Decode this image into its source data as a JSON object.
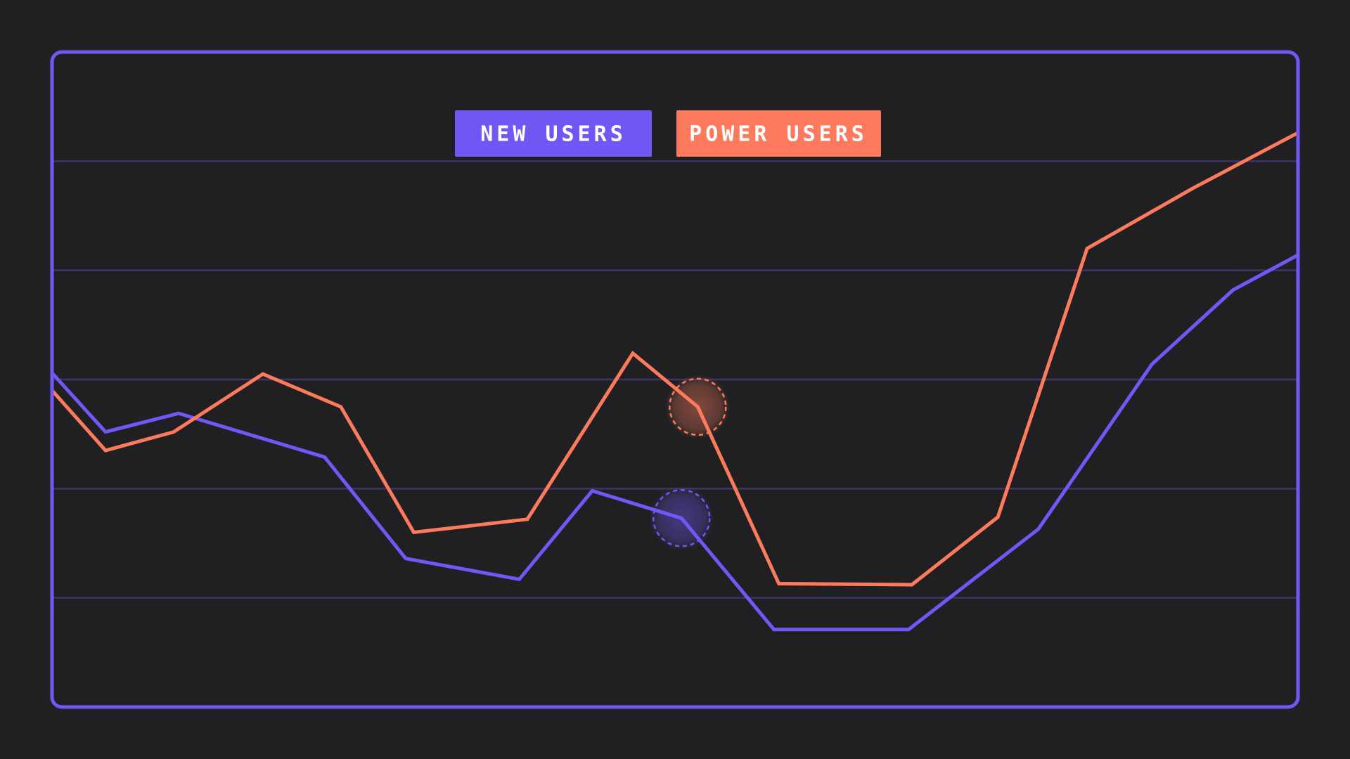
{
  "chart_data": {
    "type": "line",
    "title": "",
    "xlabel": "",
    "ylabel": "",
    "grid": true,
    "legend_position": "top-center",
    "ylim": [
      0,
      6
    ],
    "y_gridlines": [
      1,
      2,
      3,
      4,
      5
    ],
    "series": [
      {
        "name": "NEW USERS",
        "color": "#7356f6",
        "points": [
          [
            0,
            3.06
          ],
          [
            0.66,
            2.52
          ],
          [
            1.56,
            2.69
          ],
          [
            3.36,
            2.29
          ],
          [
            4.36,
            1.36
          ],
          [
            5.76,
            1.17
          ],
          [
            6.66,
            1.98
          ],
          [
            7.76,
            1.73
          ],
          [
            8.9,
            0.71
          ],
          [
            10.56,
            0.71
          ],
          [
            12.16,
            1.63
          ],
          [
            13.56,
            3.14
          ],
          [
            14.56,
            3.82
          ],
          [
            15.36,
            4.14
          ]
        ],
        "highlight": [
          7.76,
          1.73
        ]
      },
      {
        "name": "POWER USERS",
        "color": "#fd7b5c",
        "points": [
          [
            0,
            2.9
          ],
          [
            0.66,
            2.35
          ],
          [
            1.5,
            2.52
          ],
          [
            2.6,
            3.05
          ],
          [
            3.56,
            2.75
          ],
          [
            4.46,
            1.6
          ],
          [
            5.86,
            1.72
          ],
          [
            7.16,
            3.24
          ],
          [
            7.96,
            2.75
          ],
          [
            8.96,
            1.13
          ],
          [
            10.6,
            1.12
          ],
          [
            11.66,
            1.74
          ],
          [
            12.76,
            4.2
          ],
          [
            14.06,
            4.75
          ],
          [
            15.36,
            5.26
          ]
        ],
        "highlight": [
          7.96,
          2.75
        ]
      }
    ],
    "xlim": [
      0,
      15.36
    ]
  },
  "colors": {
    "background": "#202023",
    "frame": "#7356f6",
    "grid": "#3e3566"
  }
}
